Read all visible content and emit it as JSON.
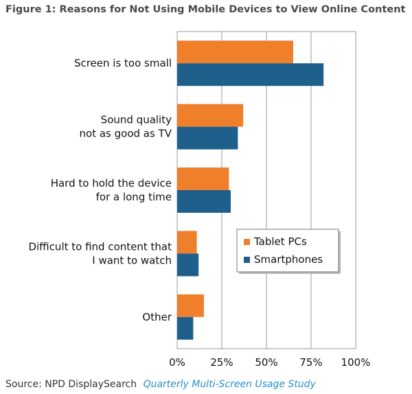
{
  "chart_data": {
    "type": "bar",
    "orientation": "horizontal",
    "title": "Figure 1: Reasons for Not Using Mobile Devices to View Online Content",
    "categories": [
      [
        "Screen is too small"
      ],
      [
        "Sound quality",
        "not as good as TV"
      ],
      [
        "Hard to hold the device",
        "for a long time"
      ],
      [
        "Difficult to find content that",
        "I want to watch"
      ],
      [
        "Other"
      ]
    ],
    "series": [
      {
        "name": "Tablet PCs",
        "color": "#f07f2c",
        "values": [
          65,
          37,
          29,
          11,
          15
        ]
      },
      {
        "name": "Smartphones",
        "color": "#1f5f8b",
        "values": [
          82,
          34,
          30,
          12,
          9
        ]
      }
    ],
    "xlim": [
      0,
      100
    ],
    "xticks": [
      0,
      25,
      50,
      75,
      100
    ],
    "xtick_labels": [
      "0%",
      "25%",
      "50%",
      "75%",
      "100%"
    ],
    "grid": true,
    "legend_position": "center-right"
  },
  "source": {
    "label": "Source: NPD DisplaySearch",
    "study": "Quarterly Multi-Screen Usage Study"
  }
}
